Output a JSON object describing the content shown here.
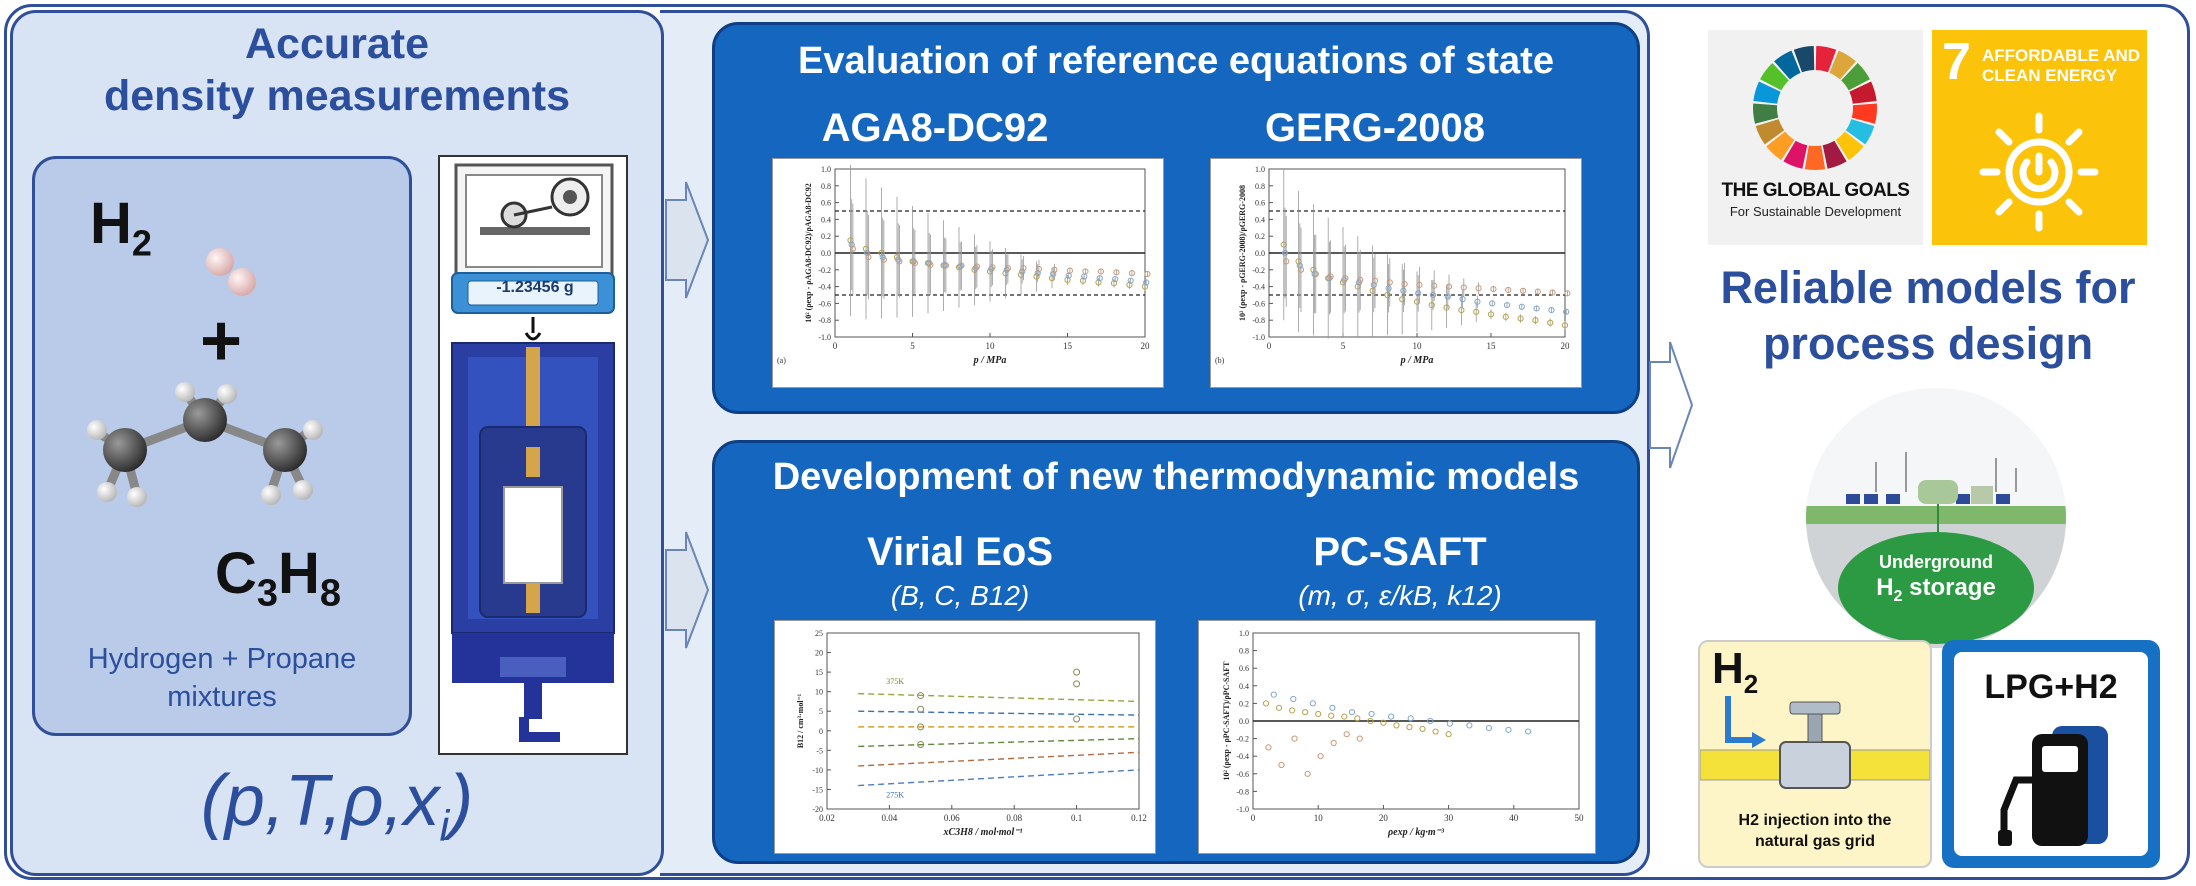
{
  "left": {
    "title_line1": "Accurate",
    "title_line2": "density measurements",
    "h2_main": "H",
    "h2_sub": "2",
    "plus": "+",
    "c3h8_c": "C",
    "c3h8_3": "3",
    "c3h8_h": "H",
    "c3h8_8": "8",
    "mixture_line1": "Hydrogen + Propane",
    "mixture_line2": "mixtures",
    "balance_readout": "-1.23456 g",
    "state_vars": "(p,T,ρ,xi)"
  },
  "evaluation": {
    "title": "Evaluation of reference equations of state",
    "chart_a_title": "AGA8-DC92",
    "chart_b_title": "GERG-2008"
  },
  "development": {
    "title": "Development of new thermodynamic models",
    "model_a_title": "Virial EoS",
    "model_a_params": "(B, C, B12)",
    "model_b_title": "PC-SAFT",
    "model_b_params": "(m, σ, ε/kB, k12)"
  },
  "right": {
    "sdg_logo_line1": "THE GLOBAL GOALS",
    "sdg_logo_line2": "For Sustainable Development",
    "sdg7_number": "7",
    "sdg7_line1": "AFFORDABLE AND",
    "sdg7_line2": "CLEAN ENERGY",
    "reliable_line1": "Reliable models for",
    "reliable_line2": "process design",
    "storage_line1": "Underground",
    "storage_h2": "H",
    "storage_sub": "2",
    "storage_line2": " storage",
    "injection_h2": "H",
    "injection_sub": "2",
    "injection_text_line1": "H2 injection into the",
    "injection_text_line2": "natural gas grid",
    "lpg_label": "LPG+H2"
  },
  "chart_data": [
    {
      "type": "scatter",
      "panel": "(a)",
      "xlabel": "p / MPa",
      "ylabel": "10² (ρexp - ρAGA8-DC92)/ρAGA8-DC92",
      "xlim": [
        0,
        20
      ],
      "ylim": [
        -1.0,
        1.0
      ],
      "xticks": [
        0,
        5,
        10,
        15,
        20
      ],
      "yticks": [
        1.0,
        0.8,
        0.6,
        0.4,
        0.2,
        0.0,
        -0.2,
        -0.4,
        -0.6,
        -0.8,
        -1.0
      ],
      "reference_lines": [
        0.5,
        0.0,
        -0.5
      ],
      "series": [
        {
          "x": [
            1,
            2,
            3,
            4,
            5,
            6,
            7,
            8,
            9,
            10,
            11,
            12,
            13,
            14,
            15,
            16,
            17,
            18,
            19,
            20
          ],
          "values": [
            0.15,
            0.05,
            0.0,
            -0.05,
            -0.1,
            -0.12,
            -0.15,
            -0.17,
            -0.2,
            -0.22,
            -0.24,
            -0.26,
            -0.28,
            -0.3,
            -0.32,
            -0.33,
            -0.35,
            -0.36,
            -0.38,
            -0.4
          ]
        },
        {
          "x": [
            1,
            2,
            3,
            4,
            5,
            6,
            7,
            8,
            9,
            10,
            11,
            12,
            13,
            14,
            15,
            16,
            17,
            18,
            19,
            20
          ],
          "values": [
            0.1,
            0.0,
            -0.05,
            -0.08,
            -0.1,
            -0.12,
            -0.14,
            -0.16,
            -0.18,
            -0.19,
            -0.2,
            -0.22,
            -0.24,
            -0.25,
            -0.27,
            -0.28,
            -0.3,
            -0.31,
            -0.33,
            -0.35
          ]
        },
        {
          "x": [
            1,
            2,
            3,
            4,
            5,
            6,
            7,
            8,
            9,
            10,
            11,
            12,
            13,
            14,
            15,
            16,
            17,
            18,
            19,
            20
          ],
          "values": [
            0.05,
            -0.05,
            -0.08,
            -0.1,
            -0.12,
            -0.14,
            -0.15,
            -0.15,
            -0.16,
            -0.17,
            -0.18,
            -0.18,
            -0.19,
            -0.2,
            -0.21,
            -0.22,
            -0.22,
            -0.23,
            -0.24,
            -0.25
          ]
        }
      ]
    },
    {
      "type": "scatter",
      "panel": "(b)",
      "xlabel": "p / MPa",
      "ylabel": "10² (ρexp - ρGERG-2008)/ρGERG-2008",
      "xlim": [
        0,
        20
      ],
      "ylim": [
        -1.0,
        1.0
      ],
      "xticks": [
        0,
        5,
        10,
        15,
        20
      ],
      "yticks": [
        1.0,
        0.8,
        0.6,
        0.4,
        0.2,
        0.0,
        -0.2,
        -0.4,
        -0.6,
        -0.8,
        -1.0
      ],
      "reference_lines": [
        0.5,
        0.0,
        -0.5
      ],
      "series": [
        {
          "x": [
            1,
            2,
            3,
            4,
            5,
            6,
            7,
            8,
            9,
            10,
            11,
            12,
            13,
            14,
            15,
            16,
            17,
            18,
            19,
            20
          ],
          "values": [
            0.1,
            -0.1,
            -0.2,
            -0.3,
            -0.35,
            -0.4,
            -0.45,
            -0.5,
            -0.55,
            -0.58,
            -0.62,
            -0.65,
            -0.68,
            -0.7,
            -0.73,
            -0.76,
            -0.78,
            -0.8,
            -0.83,
            -0.86
          ]
        },
        {
          "x": [
            1,
            2,
            3,
            4,
            5,
            6,
            7,
            8,
            9,
            10,
            11,
            12,
            13,
            14,
            15,
            16,
            17,
            18,
            19,
            20
          ],
          "values": [
            0.0,
            -0.15,
            -0.25,
            -0.3,
            -0.32,
            -0.35,
            -0.38,
            -0.42,
            -0.45,
            -0.48,
            -0.5,
            -0.52,
            -0.55,
            -0.58,
            -0.6,
            -0.62,
            -0.64,
            -0.66,
            -0.68,
            -0.7
          ]
        },
        {
          "x": [
            1,
            2,
            3,
            4,
            5,
            6,
            7,
            8,
            9,
            10,
            11,
            12,
            13,
            14,
            15,
            16,
            17,
            18,
            19,
            20
          ],
          "values": [
            -0.1,
            -0.2,
            -0.25,
            -0.28,
            -0.3,
            -0.32,
            -0.33,
            -0.35,
            -0.37,
            -0.38,
            -0.39,
            -0.4,
            -0.41,
            -0.42,
            -0.43,
            -0.44,
            -0.45,
            -0.46,
            -0.47,
            -0.48
          ]
        }
      ]
    },
    {
      "type": "line",
      "xlabel": "xC3H8 / mol·mol⁻¹",
      "ylabel": "B12 / cm³·mol⁻¹",
      "xlim": [
        0.02,
        0.12
      ],
      "ylim": [
        -20,
        25
      ],
      "xticks": [
        0.02,
        0.04,
        0.06,
        0.08,
        0.1,
        0.12
      ],
      "yticks": [
        25,
        20,
        15,
        10,
        5,
        0,
        -5,
        -10,
        -15,
        -20
      ],
      "annotations": [
        "375K",
        "275K"
      ],
      "series": [
        {
          "x": [
            0.03,
            0.12
          ],
          "values": [
            9.5,
            7.5
          ]
        },
        {
          "x": [
            0.03,
            0.12
          ],
          "values": [
            5.0,
            4.0
          ]
        },
        {
          "x": [
            0.03,
            0.12
          ],
          "values": [
            1.0,
            1.0
          ]
        },
        {
          "x": [
            0.03,
            0.12
          ],
          "values": [
            -4.0,
            -2.0
          ]
        },
        {
          "x": [
            0.03,
            0.12
          ],
          "values": [
            -9.0,
            -5.5
          ]
        },
        {
          "x": [
            0.03,
            0.12
          ],
          "values": [
            -14.0,
            -10.0
          ]
        }
      ],
      "points": [
        {
          "x": 0.05,
          "y": 9.0
        },
        {
          "x": 0.05,
          "y": 5.5
        },
        {
          "x": 0.05,
          "y": 1.0
        },
        {
          "x": 0.05,
          "y": -3.5
        },
        {
          "x": 0.1,
          "y": 15.0
        },
        {
          "x": 0.1,
          "y": 12.0
        },
        {
          "x": 0.1,
          "y": 3.0
        }
      ]
    },
    {
      "type": "scatter",
      "xlabel": "ρexp / kg·m⁻³",
      "ylabel": "10² (ρexp - ρPC-SAFT)/ρPC-SAFT",
      "xlim": [
        0,
        50
      ],
      "ylim": [
        -1.0,
        1.0
      ],
      "xticks": [
        0,
        10,
        20,
        30,
        40,
        50
      ],
      "yticks": [
        1.0,
        0.8,
        0.6,
        0.4,
        0.2,
        0.0,
        -0.2,
        -0.4,
        -0.6,
        -0.8,
        -1.0
      ],
      "reference_lines": [
        0.0
      ],
      "series": [
        {
          "x": [
            2,
            4,
            6,
            8,
            10,
            12,
            14,
            16,
            18,
            20,
            22,
            24,
            26,
            28,
            30
          ],
          "values": [
            0.2,
            0.15,
            0.12,
            0.1,
            0.08,
            0.06,
            0.05,
            0.03,
            0.0,
            -0.02,
            -0.05,
            -0.07,
            -0.09,
            -0.12,
            -0.15
          ]
        },
        {
          "x": [
            3,
            6,
            9,
            12,
            15,
            18,
            21,
            24,
            27,
            30,
            33,
            36,
            39,
            42
          ],
          "values": [
            0.3,
            0.25,
            0.2,
            0.15,
            0.1,
            0.08,
            0.05,
            0.03,
            0.0,
            -0.03,
            -0.05,
            -0.08,
            -0.1,
            -0.12
          ]
        },
        {
          "x": [
            2,
            4,
            6,
            8,
            10,
            12,
            14,
            16
          ],
          "values": [
            -0.3,
            -0.5,
            -0.2,
            -0.6,
            -0.4,
            -0.25,
            -0.15,
            -0.2
          ]
        }
      ]
    }
  ]
}
